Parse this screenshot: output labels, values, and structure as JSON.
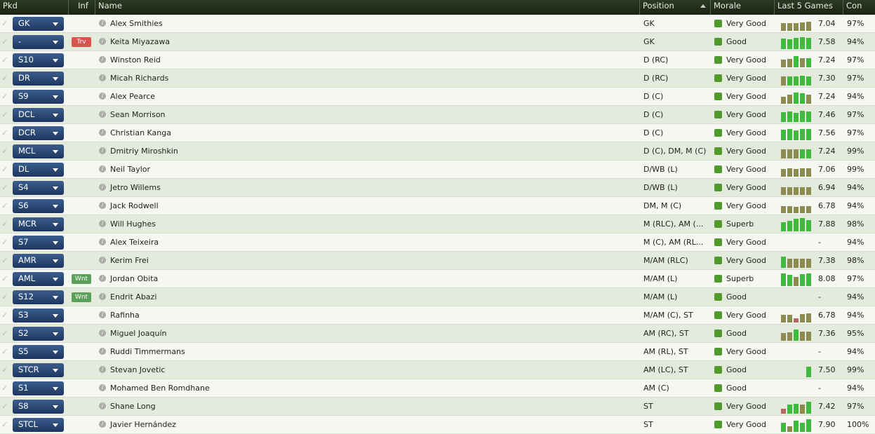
{
  "header": {
    "pkd": "Pkd",
    "inf": "Inf",
    "name": "Name",
    "position": "Position",
    "morale": "Morale",
    "last5": "Last 5 Games",
    "con": "Con"
  },
  "rows": [
    {
      "pkd": "GK",
      "name": "Alex Smithies",
      "position": "GK",
      "morale": "Very Good",
      "rating": "7.04",
      "con": "97%",
      "form": [
        6.9,
        7.0,
        7.0,
        7.1,
        7.2
      ]
    },
    {
      "pkd": "-",
      "inf": "Trv",
      "name": "Keita Miyazawa",
      "position": "GK",
      "morale": "Good",
      "rating": "7.58",
      "con": "94%",
      "form": [
        7.5,
        7.4,
        7.6,
        7.8,
        7.6
      ]
    },
    {
      "pkd": "S10",
      "name": "Winston Reid",
      "position": "D (RC)",
      "morale": "Very Good",
      "rating": "7.24",
      "con": "97%",
      "form": [
        7.0,
        7.1,
        7.6,
        7.2,
        7.3
      ]
    },
    {
      "pkd": "DR",
      "name": "Micah Richards",
      "position": "D (RC)",
      "morale": "Very Good",
      "rating": "7.30",
      "con": "97%",
      "form": [
        7.2,
        7.3,
        7.3,
        7.4,
        7.3
      ]
    },
    {
      "pkd": "S9",
      "name": "Alex Pearce",
      "position": "D (C)",
      "morale": "Very Good",
      "rating": "7.24",
      "con": "94%",
      "form": [
        6.8,
        7.2,
        7.6,
        7.5,
        7.2
      ]
    },
    {
      "pkd": "DCL",
      "name": "Sean Morrison",
      "position": "D (C)",
      "morale": "Very Good",
      "rating": "7.46",
      "con": "97%",
      "form": [
        7.4,
        7.5,
        7.3,
        7.6,
        7.5
      ]
    },
    {
      "pkd": "DCR",
      "name": "Christian Kanga",
      "position": "D (C)",
      "morale": "Very Good",
      "rating": "7.56",
      "con": "97%",
      "form": [
        7.5,
        7.6,
        7.4,
        7.7,
        7.6
      ]
    },
    {
      "pkd": "MCL",
      "name": "Dmitriy Miroshkin",
      "position": "D (C), DM, M (C)",
      "morale": "Very Good",
      "rating": "7.24",
      "con": "99%",
      "form": [
        7.2,
        7.2,
        7.2,
        7.3,
        7.3
      ]
    },
    {
      "pkd": "DL",
      "name": "Neil Taylor",
      "position": "D/WB (L)",
      "morale": "Very Good",
      "rating": "7.06",
      "con": "99%",
      "form": [
        7.0,
        7.1,
        7.0,
        7.1,
        7.1
      ]
    },
    {
      "pkd": "S4",
      "name": "Jetro Willems",
      "position": "D/WB (L)",
      "morale": "Very Good",
      "rating": "6.94",
      "con": "94%",
      "form": [
        6.9,
        7.0,
        6.9,
        7.0,
        6.9
      ]
    },
    {
      "pkd": "S6",
      "name": "Jack Rodwell",
      "position": "DM, M (C)",
      "morale": "Very Good",
      "rating": "6.78",
      "con": "94%",
      "form": [
        6.8,
        6.8,
        6.7,
        6.8,
        6.8
      ]
    },
    {
      "pkd": "MCR",
      "name": "Will Hughes",
      "position": "M (RLC), AM (...",
      "morale": "Superb",
      "rating": "7.88",
      "con": "98%",
      "form": [
        7.3,
        7.5,
        7.9,
        8.0,
        7.6
      ]
    },
    {
      "pkd": "S7",
      "name": "Alex Teixeira",
      "position": "M (C), AM (RL...",
      "morale": "Very Good",
      "rating": "-",
      "con": "94%",
      "form": []
    },
    {
      "pkd": "AMR",
      "name": "Kerim Frei",
      "position": "M/AM (RLC)",
      "morale": "Very Good",
      "rating": "7.38",
      "con": "98%",
      "form": [
        7.7,
        7.2,
        7.2,
        7.2,
        7.2
      ]
    },
    {
      "pkd": "AML",
      "inf": "Wnt",
      "name": "Jordan Obita",
      "position": "M/AM (L)",
      "morale": "Superb",
      "rating": "8.08",
      "con": "97%",
      "form": [
        7.9,
        7.6,
        7.2,
        7.8,
        7.9
      ]
    },
    {
      "pkd": "S12",
      "inf": "Wnt",
      "name": "Endrit Abazi",
      "position": "M/AM (L)",
      "morale": "Good",
      "rating": "-",
      "con": "94%",
      "form": []
    },
    {
      "pkd": "S3",
      "name": "Rafinha",
      "position": "M/AM (C), ST",
      "morale": "Very Good",
      "rating": "6.78",
      "con": "94%",
      "form": [
        6.9,
        6.9,
        6.3,
        7.1,
        7.2
      ]
    },
    {
      "pkd": "S2",
      "name": "Miguel Joaquín",
      "position": "AM (RC), ST",
      "morale": "Good",
      "rating": "7.36",
      "con": "95%",
      "form": [
        7.0,
        7.1,
        7.6,
        7.2,
        7.2
      ]
    },
    {
      "pkd": "S5",
      "name": "Ruddi Timmermans",
      "position": "AM (RL), ST",
      "morale": "Very Good",
      "rating": "-",
      "con": "94%",
      "form": []
    },
    {
      "pkd": "STCR",
      "name": "Stevan Jovetic",
      "position": "AM (LC), ST",
      "morale": "Good",
      "rating": "7.50",
      "con": "99%",
      "form": [
        7.5
      ]
    },
    {
      "pkd": "S1",
      "name": "Mohamed Ben Romdhane",
      "position": "AM (C)",
      "morale": "Good",
      "rating": "-",
      "con": "94%",
      "form": []
    },
    {
      "pkd": "S8",
      "name": "Shane Long",
      "position": "ST",
      "morale": "Very Good",
      "rating": "7.42",
      "con": "97%",
      "form": [
        6.4,
        7.3,
        7.4,
        7.2,
        7.8
      ]
    },
    {
      "pkd": "STCL",
      "name": "Javier Hernández",
      "position": "ST",
      "morale": "Very Good",
      "rating": "7.90",
      "con": "100%",
      "form": [
        7.3,
        6.6,
        7.6,
        7.3,
        7.9
      ]
    }
  ]
}
